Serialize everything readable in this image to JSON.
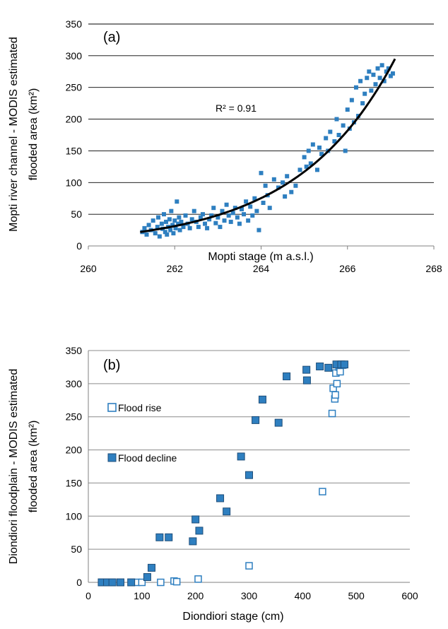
{
  "chart_data": [
    {
      "panel_label": "(a)",
      "type": "scatter",
      "xlabel": "Mopti stage (m a.s.l.)",
      "ylabel_line1": "Mopti river channel - MODIS estimated",
      "ylabel_line2": "flooded area (km²)",
      "xlim": [
        260,
        268
      ],
      "ylim": [
        0,
        350
      ],
      "x_ticks": [
        "260",
        "262",
        "264",
        "266",
        "268"
      ],
      "y_ticks": [
        "0",
        "50",
        "100",
        "150",
        "200",
        "250",
        "300",
        "350"
      ],
      "grid": "horizontal",
      "annotation": "R² = 0.91",
      "color": "#2e7fc0",
      "trendline": {
        "type": "exponential",
        "a": 22.0,
        "b": 0.44,
        "x0": 261.2,
        "x_from": 261.2,
        "x_to": 267.1
      },
      "points": [
        [
          261.25,
          22
        ],
        [
          261.3,
          28
        ],
        [
          261.35,
          18
        ],
        [
          261.4,
          33
        ],
        [
          261.45,
          25
        ],
        [
          261.5,
          40
        ],
        [
          261.55,
          20
        ],
        [
          261.6,
          30
        ],
        [
          261.62,
          45
        ],
        [
          261.65,
          15
        ],
        [
          261.7,
          35
        ],
        [
          261.72,
          27
        ],
        [
          261.75,
          50
        ],
        [
          261.78,
          22
        ],
        [
          261.8,
          38
        ],
        [
          261.82,
          18
        ],
        [
          261.85,
          30
        ],
        [
          261.88,
          42
        ],
        [
          261.9,
          25
        ],
        [
          261.92,
          55
        ],
        [
          261.95,
          33
        ],
        [
          261.97,
          20
        ],
        [
          262.0,
          40
        ],
        [
          262.02,
          28
        ],
        [
          262.05,
          70
        ],
        [
          262.08,
          35
        ],
        [
          262.1,
          45
        ],
        [
          262.12,
          25
        ],
        [
          262.15,
          38
        ],
        [
          262.2,
          30
        ],
        [
          262.25,
          48
        ],
        [
          262.3,
          35
        ],
        [
          262.35,
          28
        ],
        [
          262.4,
          42
        ],
        [
          262.45,
          55
        ],
        [
          262.5,
          38
        ],
        [
          262.55,
          30
        ],
        [
          262.6,
          45
        ],
        [
          262.65,
          50
        ],
        [
          262.7,
          35
        ],
        [
          262.75,
          28
        ],
        [
          262.8,
          42
        ],
        [
          262.85,
          48
        ],
        [
          262.9,
          60
        ],
        [
          262.95,
          36
        ],
        [
          263.0,
          45
        ],
        [
          263.05,
          30
        ],
        [
          263.1,
          55
        ],
        [
          263.15,
          40
        ],
        [
          263.2,
          65
        ],
        [
          263.25,
          48
        ],
        [
          263.3,
          38
        ],
        [
          263.35,
          52
        ],
        [
          263.4,
          60
        ],
        [
          263.45,
          45
        ],
        [
          263.5,
          35
        ],
        [
          263.55,
          58
        ],
        [
          263.6,
          50
        ],
        [
          263.65,
          70
        ],
        [
          263.7,
          40
        ],
        [
          263.75,
          62
        ],
        [
          263.8,
          48
        ],
        [
          263.85,
          75
        ],
        [
          263.9,
          55
        ],
        [
          263.95,
          25
        ],
        [
          264.0,
          115
        ],
        [
          264.05,
          68
        ],
        [
          264.1,
          95
        ],
        [
          264.15,
          80
        ],
        [
          264.2,
          60
        ],
        [
          264.3,
          105
        ],
        [
          264.4,
          92
        ],
        [
          264.5,
          100
        ],
        [
          264.55,
          78
        ],
        [
          264.6,
          110
        ],
        [
          264.7,
          85
        ],
        [
          264.8,
          95
        ],
        [
          264.9,
          120
        ],
        [
          265.0,
          140
        ],
        [
          265.05,
          125
        ],
        [
          265.1,
          150
        ],
        [
          265.15,
          130
        ],
        [
          265.2,
          160
        ],
        [
          265.3,
          120
        ],
        [
          265.35,
          155
        ],
        [
          265.4,
          145
        ],
        [
          265.5,
          170
        ],
        [
          265.55,
          150
        ],
        [
          265.6,
          180
        ],
        [
          265.7,
          165
        ],
        [
          265.75,
          200
        ],
        [
          265.8,
          175
        ],
        [
          265.9,
          190
        ],
        [
          265.95,
          150
        ],
        [
          266.0,
          215
        ],
        [
          266.05,
          185
        ],
        [
          266.1,
          230
        ],
        [
          266.15,
          195
        ],
        [
          266.2,
          250
        ],
        [
          266.25,
          205
        ],
        [
          266.3,
          260
        ],
        [
          266.35,
          225
        ],
        [
          266.4,
          240
        ],
        [
          266.45,
          265
        ],
        [
          266.5,
          275
        ],
        [
          266.55,
          245
        ],
        [
          266.6,
          270
        ],
        [
          266.65,
          255
        ],
        [
          266.7,
          280
        ],
        [
          266.75,
          265
        ],
        [
          266.8,
          285
        ],
        [
          266.85,
          260
        ],
        [
          266.9,
          275
        ],
        [
          266.95,
          280
        ],
        [
          267.0,
          268
        ],
        [
          267.05,
          272
        ]
      ]
    },
    {
      "panel_label": "(b)",
      "type": "scatter",
      "xlabel": "Diondiori stage (cm)",
      "ylabel_line1": "Diondiori floodplain - MODIS estimated",
      "ylabel_line2": "flooded area (km²)",
      "xlim": [
        0,
        600
      ],
      "ylim": [
        0,
        350
      ],
      "x_ticks": [
        "0",
        "100",
        "200",
        "300",
        "400",
        "500",
        "600"
      ],
      "y_ticks": [
        "0",
        "50",
        "100",
        "150",
        "200",
        "250",
        "300",
        "350"
      ],
      "grid": "horizontal",
      "series": [
        {
          "name": "Flood rise",
          "marker": "hollow-square",
          "color": "#2e7fc0",
          "points": [
            [
              25,
              0
            ],
            [
              30,
              0
            ],
            [
              40,
              0
            ],
            [
              90,
              0
            ],
            [
              100,
              0
            ],
            [
              135,
              0
            ],
            [
              160,
              2
            ],
            [
              165,
              1
            ],
            [
              205,
              5
            ],
            [
              300,
              25
            ],
            [
              437,
              137
            ],
            [
              455,
              255
            ],
            [
              457,
              293
            ],
            [
              460,
              277
            ],
            [
              461,
              283
            ],
            [
              462,
              316
            ],
            [
              464,
              300
            ],
            [
              468,
              325
            ],
            [
              470,
              318
            ],
            [
              475,
              328
            ]
          ]
        },
        {
          "name": "Flood decline",
          "marker": "filled-square",
          "color": "#2e7fc0",
          "points": [
            [
              25,
              0
            ],
            [
              35,
              0
            ],
            [
              45,
              0
            ],
            [
              60,
              0
            ],
            [
              80,
              0
            ],
            [
              110,
              8
            ],
            [
              118,
              22
            ],
            [
              133,
              68
            ],
            [
              150,
              68
            ],
            [
              195,
              62
            ],
            [
              200,
              95
            ],
            [
              207,
              78
            ],
            [
              246,
              127
            ],
            [
              258,
              107
            ],
            [
              285,
              190
            ],
            [
              300,
              162
            ],
            [
              312,
              245
            ],
            [
              325,
              276
            ],
            [
              355,
              241
            ],
            [
              370,
              311
            ],
            [
              407,
              321
            ],
            [
              408,
              305
            ],
            [
              432,
              326
            ],
            [
              448,
              324
            ],
            [
              463,
              329
            ],
            [
              472,
              329
            ],
            [
              478,
              329
            ]
          ]
        }
      ]
    }
  ]
}
